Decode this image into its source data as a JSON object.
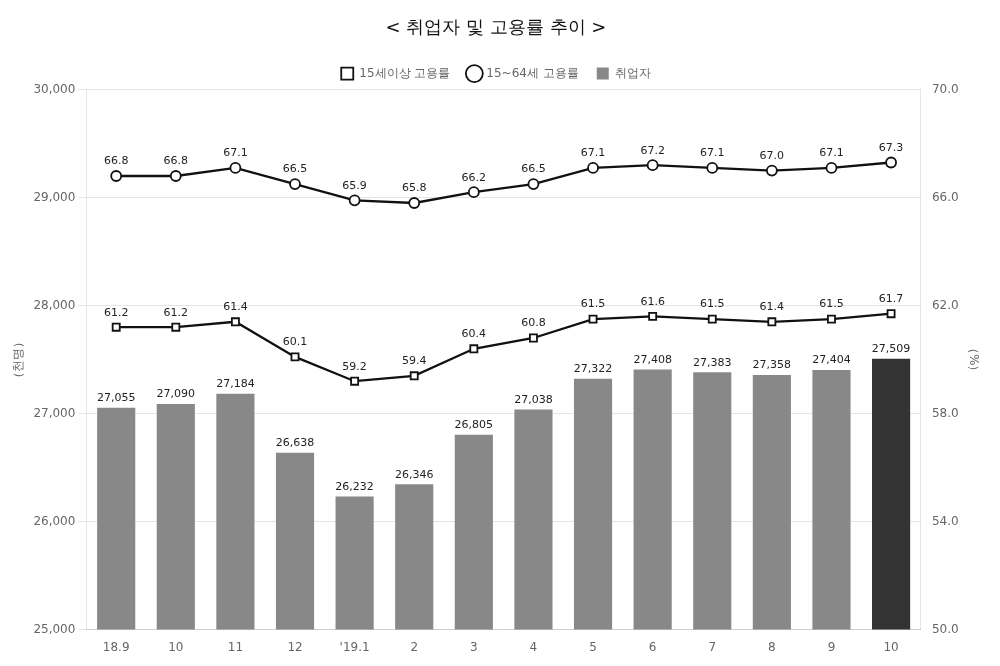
{
  "chart_data": {
    "type": "bar",
    "title": "< 취업자 및 고용률 추이 >",
    "ylabel": "（천명）",
    "y2label": "（%）",
    "categories": [
      "18.9",
      "10",
      "11",
      "12",
      "'19.1",
      "2",
      "3",
      "4",
      "5",
      "6",
      "7",
      "8",
      "9",
      "10"
    ],
    "series": [
      {
        "name": "취업자",
        "type": "bar",
        "values": [
          27055,
          27090,
          27184,
          26638,
          26232,
          26346,
          26805,
          27038,
          27322,
          27408,
          27383,
          27358,
          27404,
          27509
        ],
        "value_labels": [
          "27,055",
          "27,090",
          "27,184",
          "26,638",
          "26,232",
          "26,346",
          "26,805",
          "27,038",
          "27,322",
          "27,408",
          "27,383",
          "27,358",
          "27,404",
          "27,509"
        ],
        "colors": [
          "#888888",
          "#888888",
          "#888888",
          "#888888",
          "#888888",
          "#888888",
          "#888888",
          "#888888",
          "#888888",
          "#888888",
          "#888888",
          "#888888",
          "#888888",
          "#333333"
        ]
      },
      {
        "name": "15세이상 고용률",
        "type": "line",
        "axis": "y2",
        "color": "#111111",
        "marker": "square",
        "values": [
          61.2,
          61.2,
          61.4,
          60.1,
          59.2,
          59.4,
          60.4,
          60.8,
          61.5,
          61.6,
          61.5,
          61.4,
          61.5,
          61.7
        ],
        "value_labels": [
          "61.2",
          "61.2",
          "61.4",
          "60.1",
          "59.2",
          "59.4",
          "60.4",
          "60.8",
          "61.5",
          "61.6",
          "61.5",
          "61.4",
          "61.5",
          "61.7"
        ]
      },
      {
        "name": "15~64세 고용률",
        "type": "line",
        "axis": "y2",
        "color": "#111111",
        "marker": "circle",
        "values": [
          66.8,
          66.8,
          67.1,
          66.5,
          65.9,
          65.8,
          66.2,
          66.5,
          67.1,
          67.2,
          67.1,
          67.0,
          67.1,
          67.3
        ],
        "value_labels": [
          "66.8",
          "66.8",
          "67.1",
          "66.5",
          "65.9",
          "65.8",
          "66.2",
          "66.5",
          "67.1",
          "67.2",
          "67.1",
          "67.0",
          "67.1",
          "67.3"
        ]
      }
    ],
    "ylim": [
      25000,
      30000
    ],
    "yticks": [
      {
        "value": 25000,
        "label": "25,000"
      },
      {
        "value": 26000,
        "label": "26,000"
      },
      {
        "value": 27000,
        "label": "27,000"
      },
      {
        "value": 28000,
        "label": "28,000"
      },
      {
        "value": 29000,
        "label": "29,000"
      },
      {
        "value": 30000,
        "label": "30,000"
      }
    ],
    "y2lim": [
      50.0,
      70.0
    ],
    "y2ticks": [
      {
        "value": 50,
        "label": "50.0"
      },
      {
        "value": 54,
        "label": "54.0"
      },
      {
        "value": 58,
        "label": "58.0"
      },
      {
        "value": 62,
        "label": "62.0"
      },
      {
        "value": 66,
        "label": "66.0"
      },
      {
        "value": 70,
        "label": "70.0"
      }
    ],
    "grid": true,
    "legend": "top",
    "data_labels": true
  }
}
